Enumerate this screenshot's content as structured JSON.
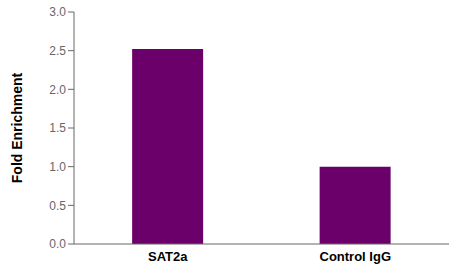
{
  "chart_data": {
    "type": "bar",
    "categories": [
      "SAT2a",
      "Control IgG"
    ],
    "values": [
      2.52,
      1.0
    ],
    "color": "#6B006B",
    "ylabel": "Fold Enrichment",
    "ylim": [
      0,
      3
    ],
    "yticks": [
      {
        "value": 0,
        "label": "0.0"
      },
      0.5,
      {
        "value": 1,
        "label": "1.0"
      },
      1.5,
      {
        "value": 2,
        "label": "2.0"
      },
      2.5,
      {
        "value": 3,
        "label": "3.0"
      }
    ],
    "grid": false
  }
}
